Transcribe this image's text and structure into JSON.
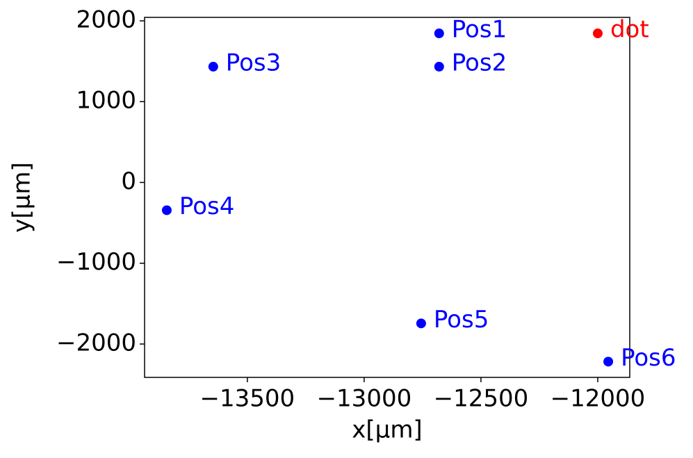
{
  "chart_data": {
    "type": "scatter",
    "xlabel": "x[µm]",
    "ylabel": "y[µm]",
    "labels": [
      "Pos1",
      "Pos2",
      "Pos3",
      "Pos4",
      "Pos5",
      "Pos6",
      "dot"
    ],
    "x": [
      -12679,
      -12679,
      -13646,
      -13845,
      -12756,
      -11955,
      -12000
    ],
    "y": [
      1845,
      1433,
      1433,
      -344,
      -1745,
      -2218,
      1845
    ],
    "colors": [
      "blue",
      "blue",
      "blue",
      "blue",
      "blue",
      "blue",
      "red"
    ],
    "xlim": [
      -13940,
      -11863
    ],
    "ylim": [
      -2413,
      2043
    ],
    "xticks": [
      {
        "value": -13500,
        "label": "−13500"
      },
      {
        "value": -13000,
        "label": "−13000"
      },
      {
        "value": -12500,
        "label": "−12500"
      },
      {
        "value": -12000,
        "label": "−12000"
      }
    ],
    "yticks": [
      {
        "value": -2000,
        "label": "−2000"
      },
      {
        "value": -1000,
        "label": "−1000"
      },
      0,
      1000,
      2000
    ]
  }
}
